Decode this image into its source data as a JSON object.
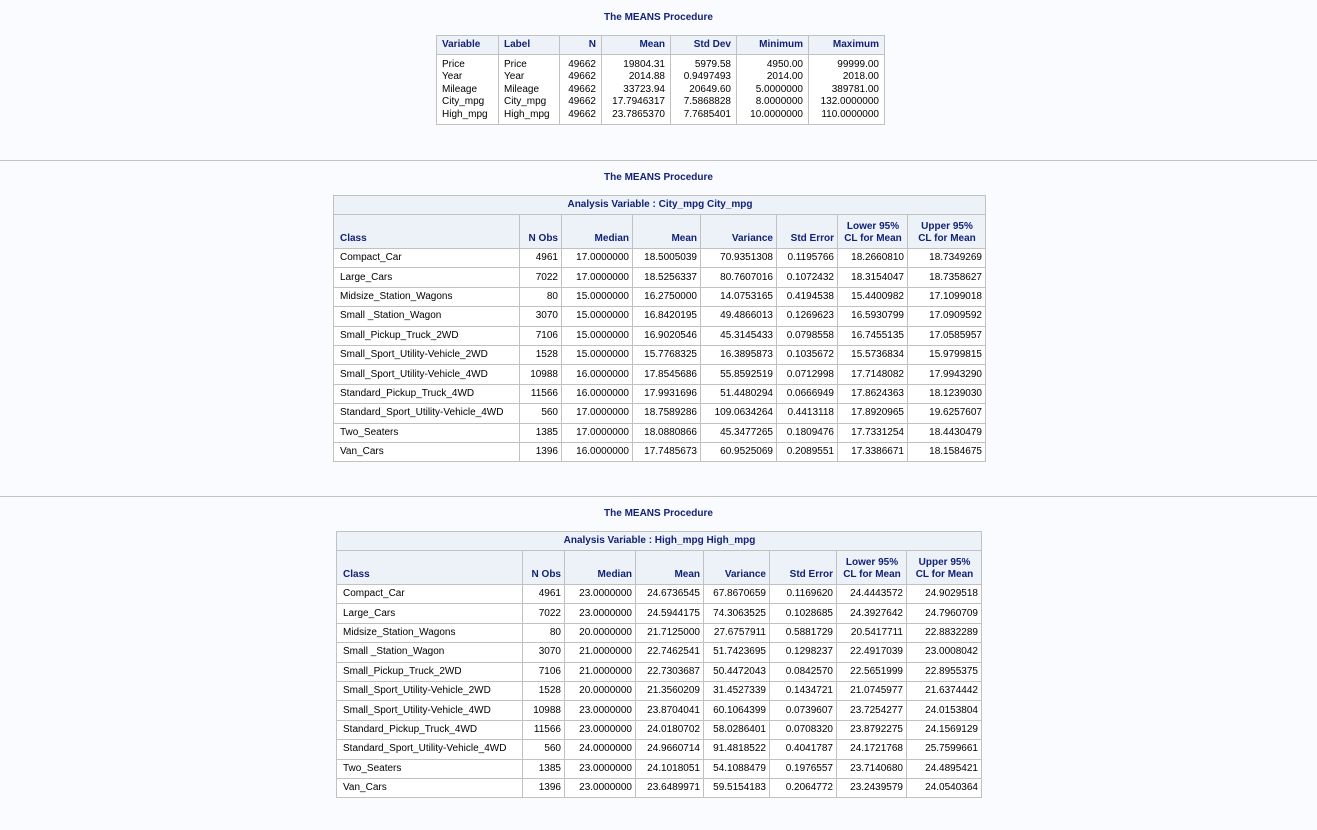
{
  "sections": [
    {
      "title": "The MEANS Procedure"
    },
    {
      "title": "The MEANS Procedure"
    },
    {
      "title": "The MEANS Procedure"
    }
  ],
  "summary_table": {
    "headers": [
      "Variable",
      "Label",
      "N",
      "Mean",
      "Std Dev",
      "Minimum",
      "Maximum"
    ],
    "columns": {
      "variable": [
        "Price",
        "Year",
        "Mileage",
        "City_mpg",
        "High_mpg"
      ],
      "label": [
        "Price",
        "Year",
        "Mileage",
        "City_mpg",
        "High_mpg"
      ],
      "n": [
        "49662",
        "49662",
        "49662",
        "49662",
        "49662"
      ],
      "mean": [
        "19804.31",
        "2014.88",
        "33723.94",
        "17.7946317",
        "23.7865370"
      ],
      "std_dev": [
        "5979.58",
        "0.9497493",
        "20649.60",
        "7.5868828",
        "7.7685401"
      ],
      "minimum": [
        "4950.00",
        "2014.00",
        "5.0000000",
        "8.0000000",
        "10.0000000"
      ],
      "maximum": [
        "99999.00",
        "2018.00",
        "389781.00",
        "132.0000000",
        "110.0000000"
      ]
    }
  },
  "city_table": {
    "caption": "Analysis Variable : City_mpg City_mpg",
    "headers": {
      "class": "Class",
      "nobs": "N Obs",
      "median": "Median",
      "mean": "Mean",
      "variance": "Variance",
      "stderr": "Std Error",
      "lcl_1": "Lower 95%",
      "lcl_2": "CL for Mean",
      "ucl_1": "Upper 95%",
      "ucl_2": "CL for Mean"
    },
    "rows": [
      [
        "Compact_Car",
        "4961",
        "17.0000000",
        "18.5005039",
        "70.9351308",
        "0.1195766",
        "18.2660810",
        "18.7349269"
      ],
      [
        "Large_Cars",
        "7022",
        "17.0000000",
        "18.5256337",
        "80.7607016",
        "0.1072432",
        "18.3154047",
        "18.7358627"
      ],
      [
        "Midsize_Station_Wagons",
        "80",
        "15.0000000",
        "16.2750000",
        "14.0753165",
        "0.4194538",
        "15.4400982",
        "17.1099018"
      ],
      [
        "Small _Station_Wagon",
        "3070",
        "15.0000000",
        "16.8420195",
        "49.4866013",
        "0.1269623",
        "16.5930799",
        "17.0909592"
      ],
      [
        "Small_Pickup_Truck_2WD",
        "7106",
        "15.0000000",
        "16.9020546",
        "45.3145433",
        "0.0798558",
        "16.7455135",
        "17.0585957"
      ],
      [
        "Small_Sport_Utility-Vehicle_2WD",
        "1528",
        "15.0000000",
        "15.7768325",
        "16.3895873",
        "0.1035672",
        "15.5736834",
        "15.9799815"
      ],
      [
        "Small_Sport_Utility-Vehicle_4WD",
        "10988",
        "16.0000000",
        "17.8545686",
        "55.8592519",
        "0.0712998",
        "17.7148082",
        "17.9943290"
      ],
      [
        "Standard_Pickup_Truck_4WD",
        "11566",
        "16.0000000",
        "17.9931696",
        "51.4480294",
        "0.0666949",
        "17.8624363",
        "18.1239030"
      ],
      [
        "Standard_Sport_Utility-Vehicle_4WD",
        "560",
        "17.0000000",
        "18.7589286",
        "109.0634264",
        "0.4413118",
        "17.8920965",
        "19.6257607"
      ],
      [
        "Two_Seaters",
        "1385",
        "17.0000000",
        "18.0880866",
        "45.3477265",
        "0.1809476",
        "17.7331254",
        "18.4430479"
      ],
      [
        "Van_Cars",
        "1396",
        "16.0000000",
        "17.7485673",
        "60.9525069",
        "0.2089551",
        "17.3386671",
        "18.1584675"
      ]
    ]
  },
  "high_table": {
    "caption": "Analysis Variable : High_mpg High_mpg",
    "headers": {
      "class": "Class",
      "nobs": "N Obs",
      "median": "Median",
      "mean": "Mean",
      "variance": "Variance",
      "stderr": "Std Error",
      "lcl_1": "Lower 95%",
      "lcl_2": "CL for Mean",
      "ucl_1": "Upper 95%",
      "ucl_2": "CL for Mean"
    },
    "rows": [
      [
        "Compact_Car",
        "4961",
        "23.0000000",
        "24.6736545",
        "67.8670659",
        "0.1169620",
        "24.4443572",
        "24.9029518"
      ],
      [
        "Large_Cars",
        "7022",
        "23.0000000",
        "24.5944175",
        "74.3063525",
        "0.1028685",
        "24.3927642",
        "24.7960709"
      ],
      [
        "Midsize_Station_Wagons",
        "80",
        "20.0000000",
        "21.7125000",
        "27.6757911",
        "0.5881729",
        "20.5417711",
        "22.8832289"
      ],
      [
        "Small _Station_Wagon",
        "3070",
        "21.0000000",
        "22.7462541",
        "51.7423695",
        "0.1298237",
        "22.4917039",
        "23.0008042"
      ],
      [
        "Small_Pickup_Truck_2WD",
        "7106",
        "21.0000000",
        "22.7303687",
        "50.4472043",
        "0.0842570",
        "22.5651999",
        "22.8955375"
      ],
      [
        "Small_Sport_Utility-Vehicle_2WD",
        "1528",
        "20.0000000",
        "21.3560209",
        "31.4527339",
        "0.1434721",
        "21.0745977",
        "21.6374442"
      ],
      [
        "Small_Sport_Utility-Vehicle_4WD",
        "10988",
        "23.0000000",
        "23.8704041",
        "60.1064399",
        "0.0739607",
        "23.7254277",
        "24.0153804"
      ],
      [
        "Standard_Pickup_Truck_4WD",
        "11566",
        "23.0000000",
        "24.0180702",
        "58.0286401",
        "0.0708320",
        "23.8792275",
        "24.1569129"
      ],
      [
        "Standard_Sport_Utility-Vehicle_4WD",
        "560",
        "24.0000000",
        "24.9660714",
        "91.4818522",
        "0.4041787",
        "24.1721768",
        "25.7599661"
      ],
      [
        "Two_Seaters",
        "1385",
        "23.0000000",
        "24.1018051",
        "54.1088479",
        "0.1976557",
        "23.7140680",
        "24.4895421"
      ],
      [
        "Van_Cars",
        "1396",
        "23.0000000",
        "23.6489971",
        "59.5154183",
        "0.2064772",
        "23.2439579",
        "24.0540364"
      ]
    ]
  }
}
